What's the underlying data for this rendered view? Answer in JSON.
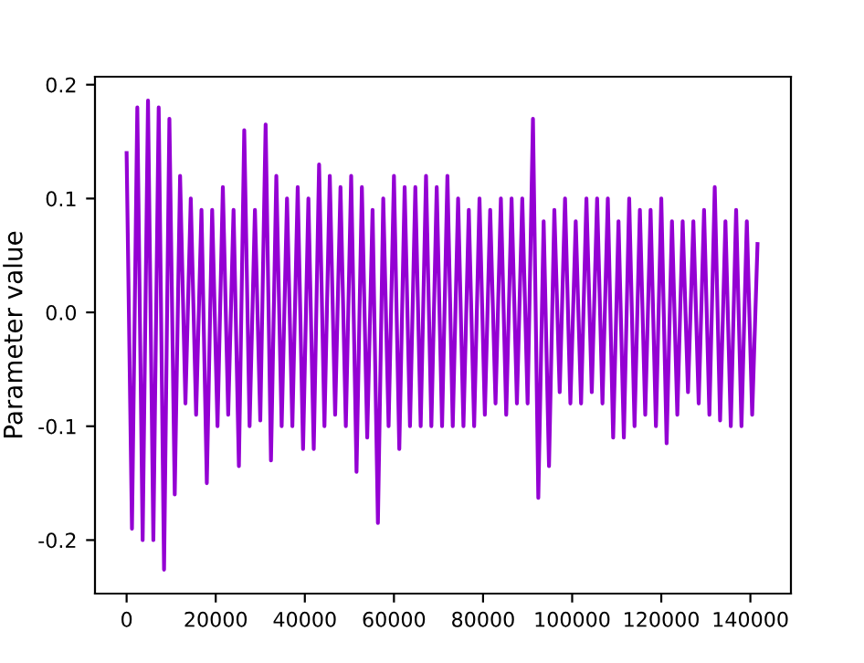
{
  "chart_data": {
    "type": "line",
    "ylabel": "Parameter value",
    "xlim": [
      -7100,
      149100
    ],
    "xticks": [
      0,
      20000,
      40000,
      60000,
      80000,
      100000,
      120000,
      140000
    ],
    "ylim": [
      -0.247,
      0.207
    ],
    "yticks": [
      -0.2,
      -0.1,
      {
        "value": 0,
        "label": "0.0"
      },
      0.1,
      0.2
    ],
    "grid": false,
    "legend": false,
    "series": [
      {
        "color": "#9400d3",
        "x": [
          0,
          1200,
          2400,
          3600,
          4800,
          6000,
          7200,
          8400,
          9600,
          10800,
          12000,
          13200,
          14400,
          15600,
          16800,
          18000,
          19200,
          20400,
          21600,
          22800,
          24000,
          25200,
          26400,
          27600,
          28800,
          30000,
          31200,
          32400,
          33600,
          34800,
          36000,
          37200,
          38400,
          39600,
          40800,
          42000,
          43200,
          44400,
          45600,
          46800,
          48000,
          49200,
          50400,
          51600,
          52800,
          54000,
          55200,
          56400,
          57600,
          58800,
          60000,
          61200,
          62400,
          63600,
          64800,
          66000,
          67200,
          68400,
          69600,
          70800,
          72000,
          73200,
          74400,
          75600,
          76800,
          78000,
          79200,
          80400,
          81600,
          82800,
          84000,
          85200,
          86400,
          87600,
          88800,
          90000,
          91200,
          92400,
          93600,
          94800,
          96000,
          97200,
          98400,
          99600,
          100800,
          102000,
          103200,
          104400,
          105600,
          106800,
          108000,
          109200,
          110400,
          111600,
          112800,
          114000,
          115200,
          116400,
          117600,
          118800,
          120000,
          121200,
          122400,
          123600,
          124800,
          126000,
          127200,
          128400,
          129600,
          130800,
          132000,
          133200,
          134400,
          135600,
          136800,
          138000,
          139200,
          140400,
          141600
        ],
        "values": [
          0.14,
          -0.19,
          0.18,
          -0.2,
          0.186,
          -0.2,
          0.18,
          -0.226,
          0.17,
          -0.16,
          0.12,
          -0.08,
          0.1,
          -0.09,
          0.09,
          -0.15,
          0.09,
          -0.1,
          0.11,
          -0.09,
          0.09,
          -0.135,
          0.16,
          -0.1,
          0.09,
          -0.095,
          0.165,
          -0.13,
          0.12,
          -0.1,
          0.1,
          -0.1,
          0.11,
          -0.12,
          0.1,
          -0.12,
          0.13,
          -0.1,
          0.12,
          -0.09,
          0.11,
          -0.1,
          0.12,
          -0.14,
          0.11,
          -0.11,
          0.09,
          -0.185,
          0.1,
          -0.1,
          0.12,
          -0.12,
          0.11,
          -0.1,
          0.11,
          -0.1,
          0.12,
          -0.1,
          0.11,
          -0.1,
          0.12,
          -0.1,
          0.1,
          -0.1,
          0.09,
          -0.1,
          0.1,
          -0.09,
          0.09,
          -0.08,
          0.1,
          -0.09,
          0.1,
          -0.08,
          0.1,
          -0.08,
          0.17,
          -0.163,
          0.08,
          -0.135,
          0.09,
          -0.07,
          0.1,
          -0.08,
          0.08,
          -0.08,
          0.1,
          -0.07,
          0.1,
          -0.08,
          0.1,
          -0.11,
          0.08,
          -0.11,
          0.1,
          -0.1,
          0.09,
          -0.09,
          0.09,
          -0.1,
          0.1,
          -0.115,
          0.08,
          -0.09,
          0.08,
          -0.07,
          0.08,
          -0.08,
          0.09,
          -0.09,
          0.11,
          -0.095,
          0.08,
          -0.1,
          0.09,
          -0.1,
          0.08,
          -0.09,
          0.06
        ]
      }
    ]
  }
}
